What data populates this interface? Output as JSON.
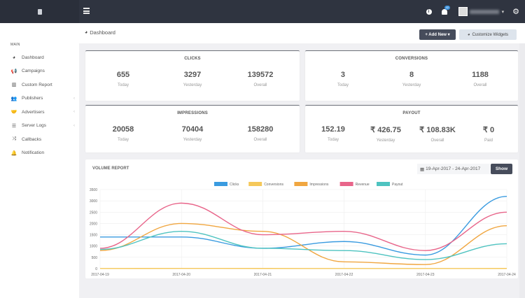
{
  "topbar": {
    "notification_count": "42",
    "icons": [
      "logo-icon",
      "menu-icon",
      "info-icon",
      "bell-icon",
      "avatar",
      "caret-down-icon",
      "gear-icon"
    ],
    "dark_color": "#2f3440"
  },
  "sidebar": {
    "heading": "MAIN",
    "items": [
      {
        "label": "Dashboard",
        "icon": "dashboard-icon",
        "glyph": "◕",
        "chevron": false
      },
      {
        "label": "Campaigns",
        "icon": "bullhorn-icon",
        "glyph": "📢",
        "chevron": false
      },
      {
        "label": "Custom Report",
        "icon": "bar-chart-icon",
        "glyph": "▥",
        "chevron": false
      },
      {
        "label": "Publishers",
        "icon": "users-icon",
        "glyph": "👥",
        "chevron": true
      },
      {
        "label": "Advertisers",
        "icon": "handshake-icon",
        "glyph": "🤝",
        "chevron": true
      },
      {
        "label": "Server Logs",
        "icon": "database-icon",
        "glyph": "☰",
        "chevron": true
      },
      {
        "label": "Callbacks",
        "icon": "shuffle-icon",
        "glyph": "⤨",
        "chevron": false
      },
      {
        "label": "Notification",
        "icon": "bell-icon",
        "glyph": "🔔",
        "chevron": false
      }
    ],
    "chevron_glyph": "‹"
  },
  "page": {
    "title": "Dashboard",
    "add_new": "+ Add New ▾",
    "customize": "Customize Widgets"
  },
  "cards": {
    "clicks": {
      "title": "CLICKS",
      "stats": [
        {
          "value": "655",
          "label": "Today"
        },
        {
          "value": "3297",
          "label": "Yesterday"
        },
        {
          "value": "139572",
          "label": "Overall"
        }
      ]
    },
    "conversions": {
      "title": "CONVERSIONS",
      "stats": [
        {
          "value": "3",
          "label": "Today"
        },
        {
          "value": "8",
          "label": "Yesterday"
        },
        {
          "value": "1188",
          "label": "Overall"
        }
      ]
    },
    "impressions": {
      "title": "IMPRESSIONS",
      "stats": [
        {
          "value": "20058",
          "label": "Today"
        },
        {
          "value": "70404",
          "label": "Yesterday"
        },
        {
          "value": "158280",
          "label": "Overall"
        }
      ]
    },
    "payout": {
      "title": "PAYOUT",
      "stats": [
        {
          "value": "152.19",
          "label": "Today"
        },
        {
          "value": "₹ 426.75",
          "label": "Yesterday"
        },
        {
          "value": "₹ 108.83K",
          "label": "Overall"
        },
        {
          "value": "₹ 0",
          "label": "Paid"
        }
      ]
    }
  },
  "volume": {
    "title": "VOLUME REPORT",
    "date_range": "19-Apr-2017 - 24-Apr-2017",
    "show": "Show"
  },
  "chart_data": {
    "type": "line",
    "title": "VOLUME REPORT",
    "categories": [
      "2017-04-19",
      "2017-04-20",
      "2017-04-21",
      "2017-04-22",
      "2017-04-23",
      "2017-04-24"
    ],
    "ylim": [
      0,
      3500
    ],
    "yticks": [
      0,
      500,
      1000,
      1500,
      2000,
      2500,
      3000,
      3500
    ],
    "grid": true,
    "legend": "top-center",
    "series": [
      {
        "name": "Clicks",
        "color": "#3a9be0",
        "values": [
          1400,
          1400,
          900,
          1200,
          600,
          3200
        ]
      },
      {
        "name": "Conversions",
        "color": "#f5c85a",
        "values": [
          5,
          10,
          8,
          6,
          5,
          8
        ]
      },
      {
        "name": "Impressions",
        "color": "#f0a640",
        "values": [
          800,
          2000,
          1650,
          300,
          180,
          1900
        ]
      },
      {
        "name": "Revenue",
        "color": "#e8658a",
        "values": [
          900,
          2900,
          1500,
          1650,
          800,
          2500
        ]
      },
      {
        "name": "Payout",
        "color": "#4ec3c0",
        "values": [
          850,
          1650,
          900,
          800,
          400,
          1100
        ]
      }
    ]
  }
}
